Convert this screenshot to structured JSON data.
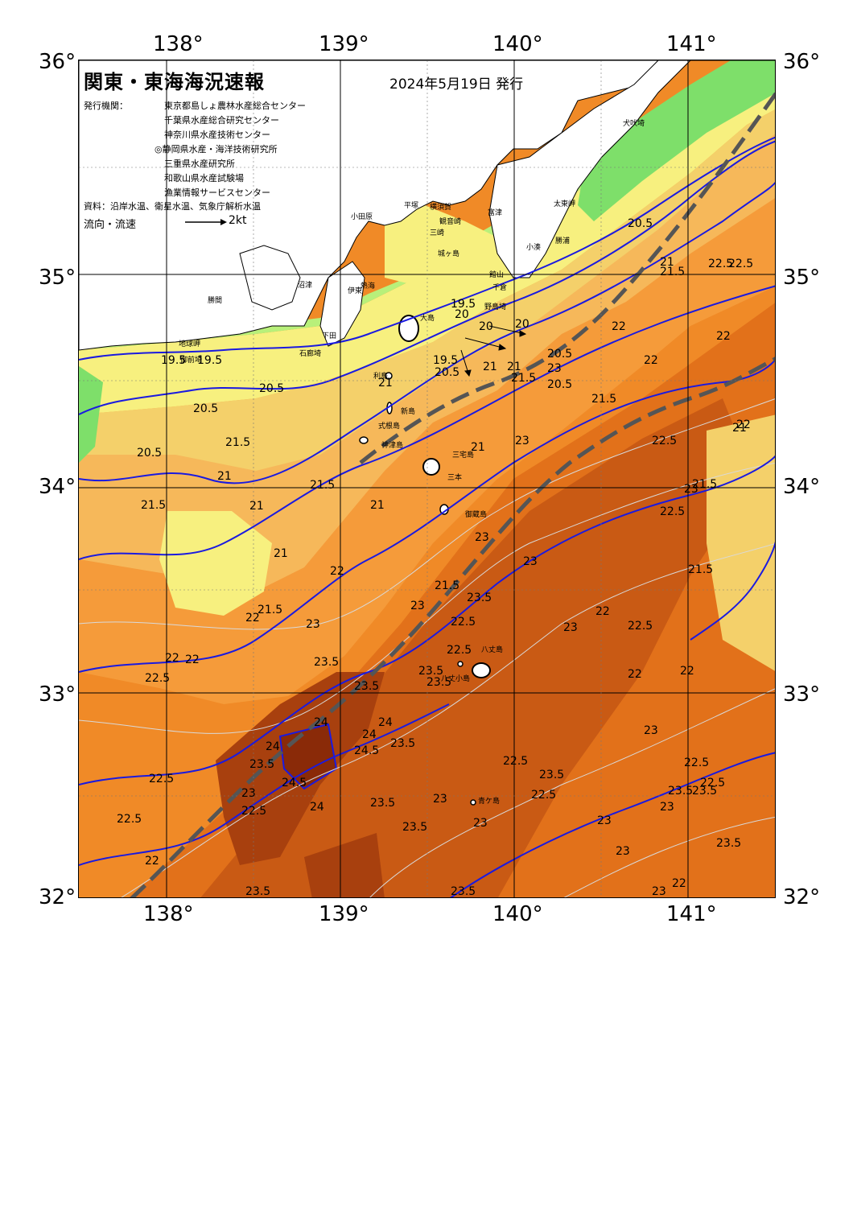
{
  "title": "関東・東海海況速報",
  "issue_date": "2024年5月19日 発行",
  "agency_label": "発行機関：",
  "agencies": [
    "東京都島しょ農林水産総合センター",
    "千葉県水産総合研究センター",
    "神奈川県水産技術センター",
    "◎静岡県水産・海洋技術研究所",
    "三重県水産研究所",
    "和歌山県水産試験場",
    "漁業情報サービスセンター"
  ],
  "source": "資料：沿岸水温、衛星水温、気象庁解析水温",
  "legend": {
    "label": "流向・流速",
    "value": "2kt"
  },
  "axes": {
    "lon_top": [
      "138°",
      "139°",
      "140°",
      "141°"
    ],
    "lon_bottom": [
      "138°",
      "139°",
      "140°",
      "141°"
    ],
    "lat_left": [
      "36°",
      "35°",
      "34°",
      "33°",
      "32°"
    ],
    "lat_right": [
      "36°",
      "35°",
      "34°",
      "33°",
      "32°"
    ]
  },
  "place_names": {
    "inubozaki": "犬吠埼",
    "taitomisaki": "太東岬",
    "katsuura": "勝浦",
    "kominato": "小湊",
    "tateyama": "館山",
    "chikura": "千倉",
    "nojimazaki": "野島埼",
    "futtsu": "富津",
    "kannonzaki": "観音崎",
    "jogashima": "城ヶ島",
    "misaki": "三崎",
    "yokosuka": "横須賀",
    "hiratsuka": "平塚",
    "odawara": "小田原",
    "oshima": "大島",
    "ito": "伊東",
    "atami": "熱海",
    "shimoda": "下田",
    "irozaki": "石廊埼",
    "numazu": "沼津",
    "katsuma": "勝間",
    "omaezaki": "御前埼",
    "chikyu": "地球岬",
    "toshima": "利島",
    "niijima": "新島",
    "shikinejima": "式根島",
    "kozushima": "神津島",
    "miyakejima": "三宅島",
    "mikurajima": "御蔵島",
    "hachijojima": "八丈島",
    "hachijokojima": "八丈小島",
    "aogashima": "青ケ島",
    "mikura_name": "三本"
  },
  "isotherm_labels": [
    "19.5",
    "19.5",
    "19.5",
    "19.5",
    "20",
    "20",
    "20",
    "20.5",
    "20.5",
    "20.5",
    "20.5",
    "20.5",
    "20.5",
    "20.5",
    "21",
    "21",
    "21",
    "21",
    "21",
    "21",
    "21",
    "21",
    "21",
    "21",
    "21.5",
    "21.5",
    "21.5",
    "21.5",
    "21.5",
    "21.5",
    "21.5",
    "21.5",
    "21.5",
    "21.5",
    "22",
    "22",
    "22",
    "22",
    "22",
    "22",
    "22",
    "22",
    "22",
    "22",
    "22",
    "22",
    "22",
    "22.5",
    "22.5",
    "22.5",
    "22.5",
    "22.5",
    "22.5",
    "22.5",
    "22.5",
    "22.5",
    "22.5",
    "22.5",
    "22.5",
    "22.5",
    "22.5",
    "22.5",
    "23",
    "23",
    "23",
    "23",
    "23",
    "23",
    "23",
    "23",
    "23",
    "23",
    "23",
    "23",
    "23",
    "23",
    "23",
    "23",
    "23.5",
    "23.5",
    "23.5",
    "23.5",
    "23.5",
    "23.5",
    "23.5",
    "23.5",
    "23.5",
    "23.5",
    "23.5",
    "23.5",
    "23.5",
    "23.5",
    "23.5",
    "24",
    "24",
    "24",
    "24",
    "24",
    "24.5",
    "24.5"
  ],
  "colors": {
    "land": "#ffffff",
    "t_19": "#7edf6a",
    "t_195": "#b8f07a",
    "t_205": "#f7f07f",
    "t_21": "#f4d06a",
    "t_215": "#f6b85a",
    "t_22": "#f59b3a",
    "t_225": "#f08a27",
    "t_23": "#e2711a",
    "t_235": "#c95a14",
    "t_24": "#a8400e",
    "kuroshio_axis": "#555555",
    "isotherm_major": "#1a1ae0",
    "isotherm_minor": "#d9d9d9"
  }
}
